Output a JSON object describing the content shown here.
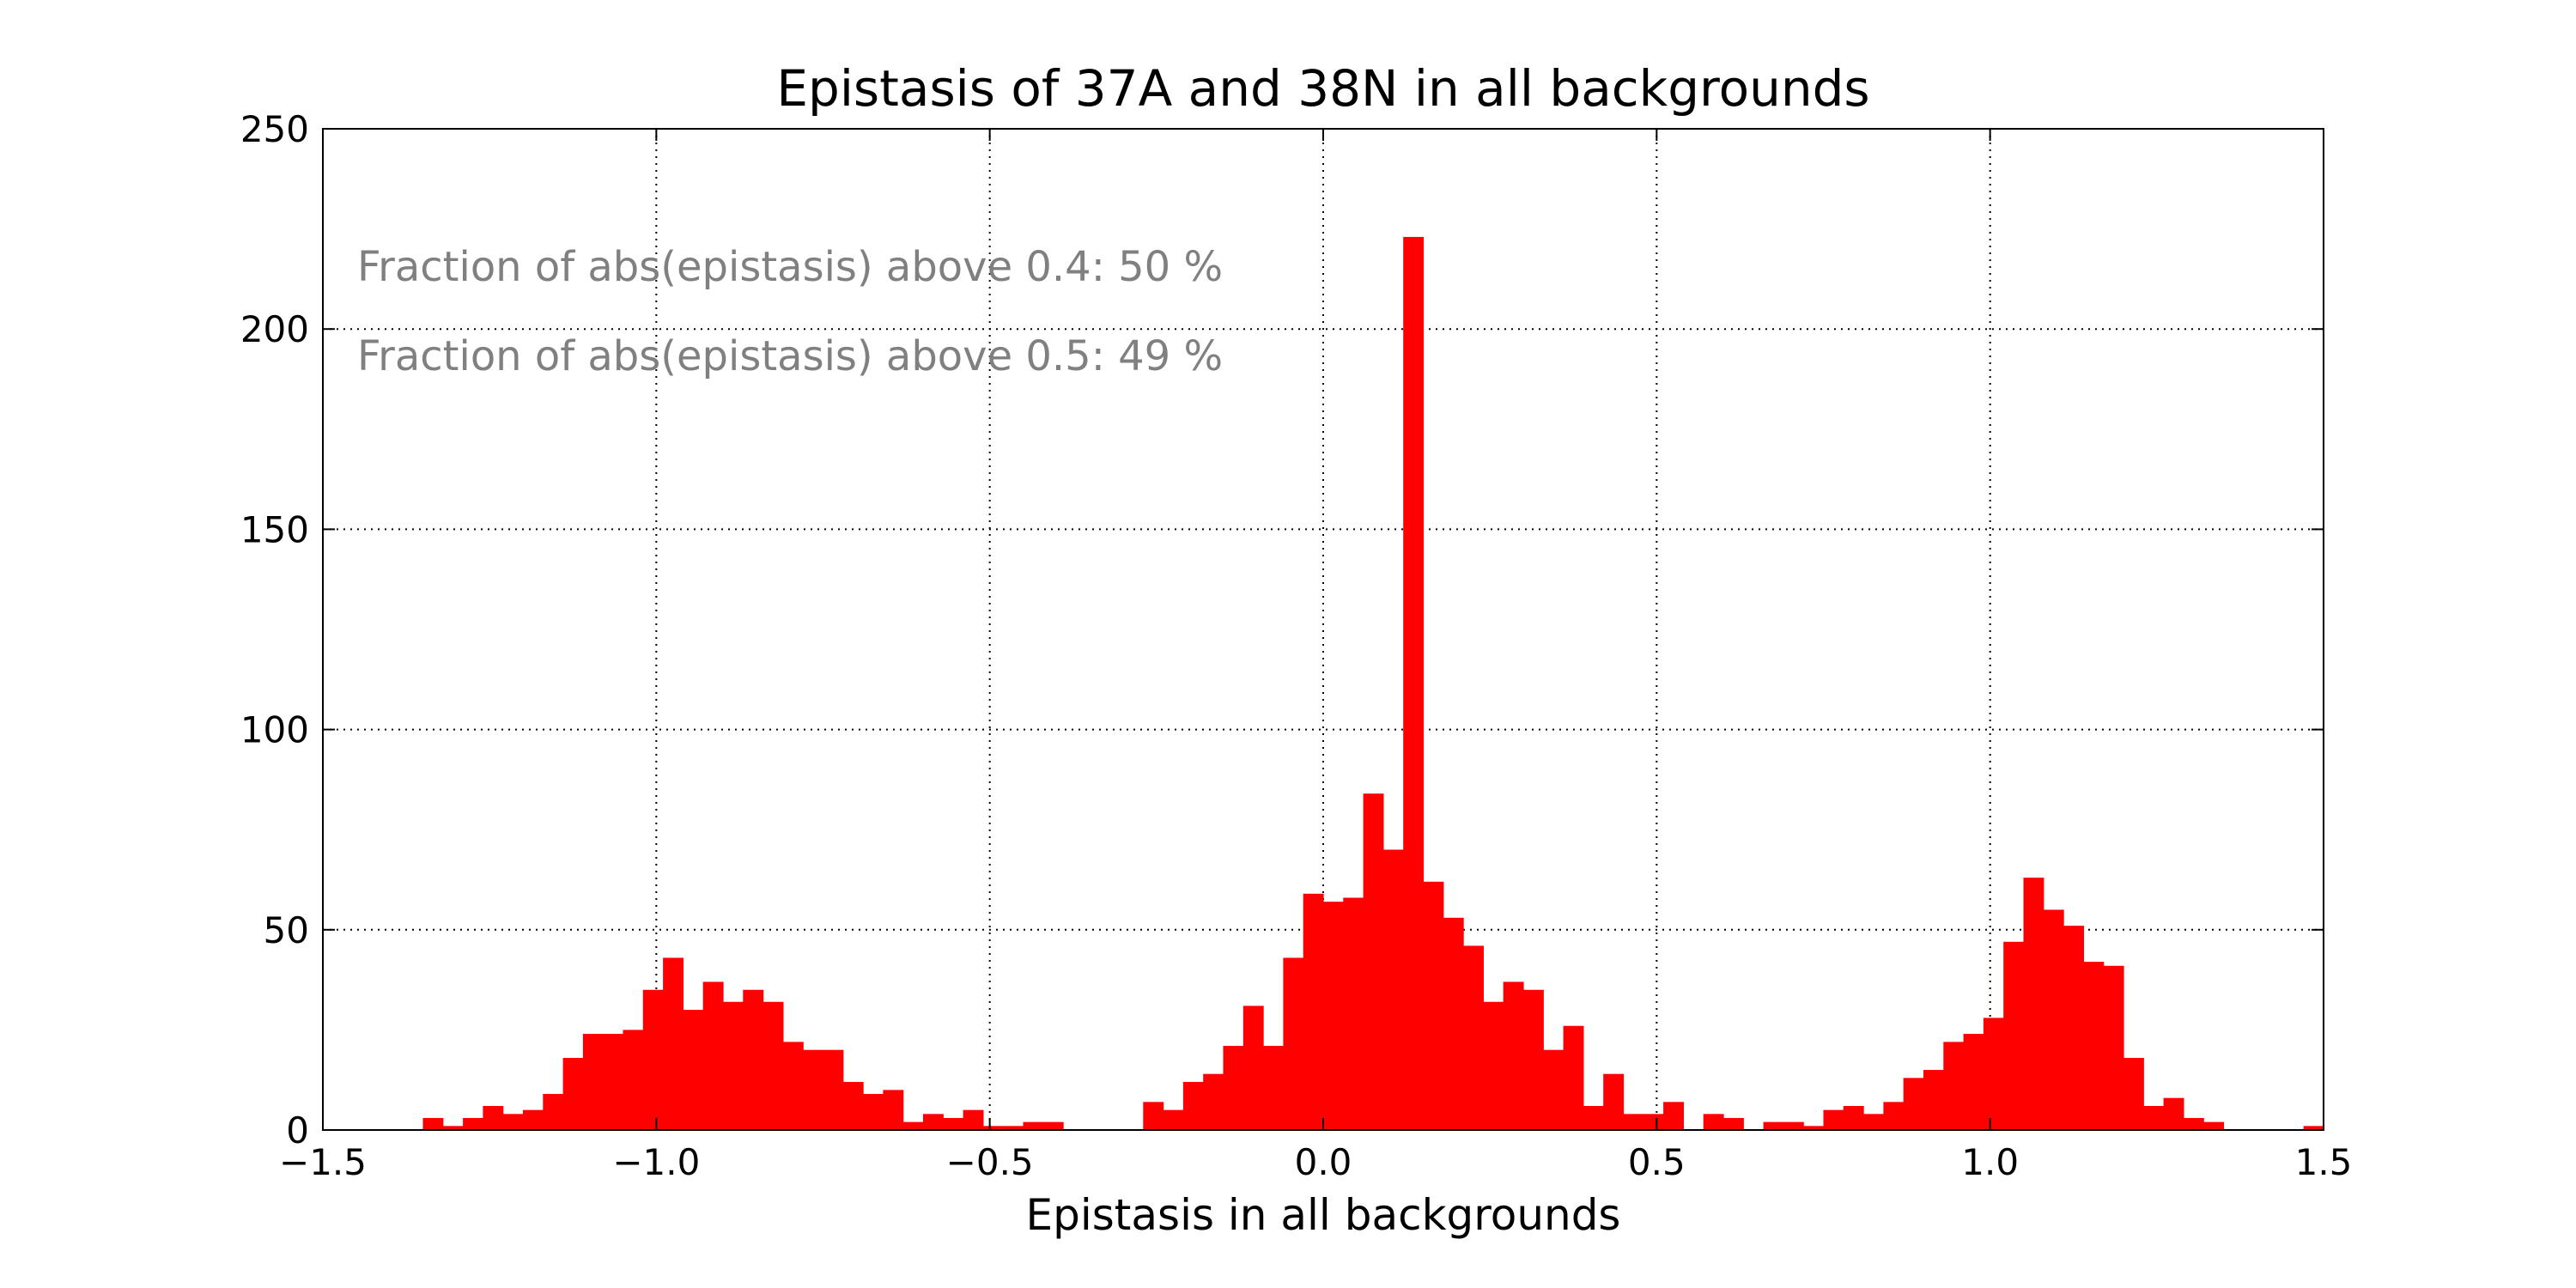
{
  "chart_data": {
    "type": "bar",
    "title": "Epistasis of 37A and 38N in all backgrounds",
    "xlabel": "Epistasis in all backgrounds",
    "ylabel": "",
    "xlim": [
      -1.5,
      1.5
    ],
    "ylim": [
      0,
      250
    ],
    "xticks": [
      -1.5,
      -1.0,
      -0.5,
      0.0,
      0.5,
      1.0,
      1.5
    ],
    "xtick_labels": [
      "−1.5",
      "−1.0",
      "−0.5",
      "0.0",
      "0.5",
      "1.0",
      "1.5"
    ],
    "yticks": [
      0,
      50,
      100,
      150,
      200,
      250
    ],
    "ytick_labels": [
      "0",
      "50",
      "100",
      "150",
      "200",
      "250"
    ],
    "grid": true,
    "bar_color": "#ff0000",
    "annotation_color": "#808080",
    "annotations": [
      "Fraction of abs(epistasis) above 0.4: 50 %",
      "Fraction of abs(epistasis) above 0.5: 49 %"
    ],
    "bin_start": -1.5,
    "bin_width": 0.03,
    "values": [
      0,
      0,
      0,
      0,
      0,
      3,
      1,
      3,
      6,
      4,
      5,
      9,
      18,
      24,
      24,
      25,
      35,
      43,
      30,
      37,
      32,
      35,
      32,
      22,
      20,
      20,
      12,
      9,
      10,
      2,
      4,
      3,
      5,
      1,
      1,
      2,
      2,
      0,
      0,
      0,
      0,
      7,
      5,
      12,
      14,
      21,
      31,
      21,
      43,
      59,
      57,
      58,
      84,
      70,
      223,
      62,
      53,
      46,
      32,
      37,
      35,
      20,
      26,
      6,
      14,
      4,
      4,
      7,
      0,
      4,
      3,
      0,
      2,
      2,
      1,
      5,
      6,
      4,
      7,
      13,
      15,
      22,
      24,
      28,
      47,
      63,
      55,
      51,
      42,
      41,
      18,
      6,
      8,
      3,
      2,
      0,
      0,
      0,
      0,
      1
    ]
  }
}
